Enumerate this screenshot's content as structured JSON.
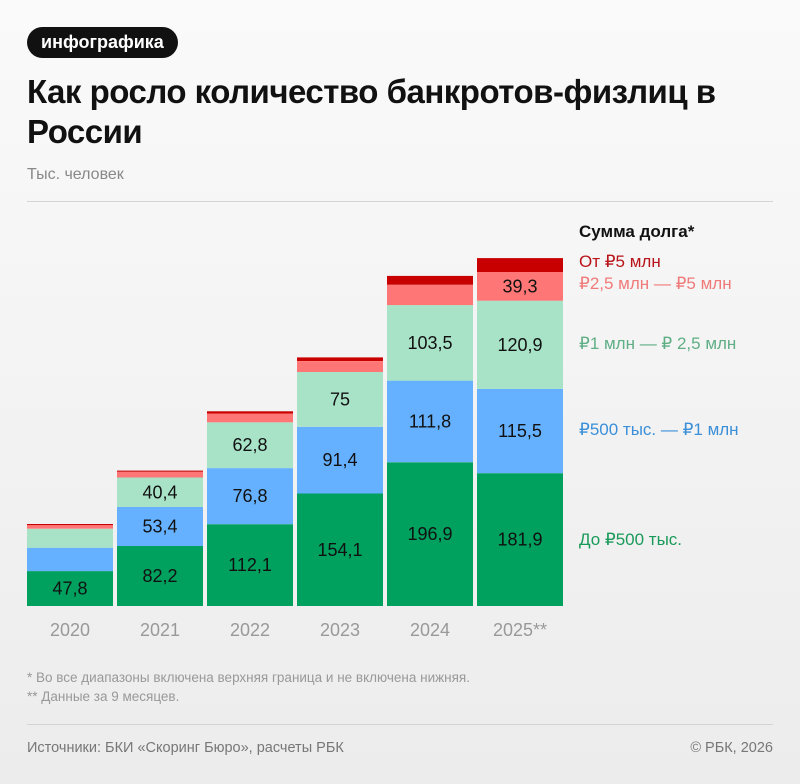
{
  "tag": "инфографика",
  "title": "Как росло количество банкротов-физлиц в России",
  "unit": "Тыс. человек",
  "chart_data": {
    "type": "bar",
    "stacked": true,
    "categories": [
      "2020",
      "2021",
      "2022",
      "2023",
      "2024",
      "2025**"
    ],
    "legend_title": "Сумма долга*",
    "legend_position": "right",
    "series": [
      {
        "name": "До ₽500 тыс.",
        "color": "#00a05e",
        "text_color": "#1a9a5a",
        "values": [
          47.8,
          82.2,
          112.1,
          154.1,
          196.9,
          181.9
        ],
        "labels": [
          "47,8",
          "82,2",
          "112,1",
          "154,1",
          "196,9",
          "181,9"
        ]
      },
      {
        "name": "₽500 тыс. — ₽1 млн",
        "color": "#66b1ff",
        "text_color": "#3b8fd8",
        "values": [
          32,
          53.4,
          76.8,
          91.4,
          111.8,
          115.5
        ],
        "labels": [
          "",
          "53,4",
          "76,8",
          "91,4",
          "111,8",
          "115,5"
        ]
      },
      {
        "name": "₽1 млн — ₽ 2,5 млн",
        "color": "#a8e3c8",
        "text_color": "#5fae85",
        "values": [
          26,
          40.4,
          62.8,
          75,
          103.5,
          120.9
        ],
        "labels": [
          "",
          "40,4",
          "62,8",
          "75",
          "103,5",
          "120,9"
        ]
      },
      {
        "name": "₽2,5 млн — ₽5 млн",
        "color": "#ff7676",
        "text_color": "#f07a7a",
        "values": [
          5,
          8,
          12,
          15,
          28,
          39.3
        ],
        "labels": [
          "",
          "",
          "",
          "",
          "",
          "39,3"
        ]
      },
      {
        "name": "От ₽5 млн",
        "color": "#c80000",
        "text_color": "#b8141a",
        "values": [
          1.5,
          1.5,
          3,
          5,
          12,
          19
        ],
        "labels": [
          "",
          "",
          "",
          "",
          "",
          ""
        ]
      }
    ],
    "grid": false
  },
  "footnotes": [
    "* Во все диапазоны включена верхняя граница и не включена нижняя.",
    "** Данные за 9 месяцев."
  ],
  "source": "Источники: БКИ «Скоринг Бюро», расчеты РБК",
  "copyright": "© РБК, 2026"
}
